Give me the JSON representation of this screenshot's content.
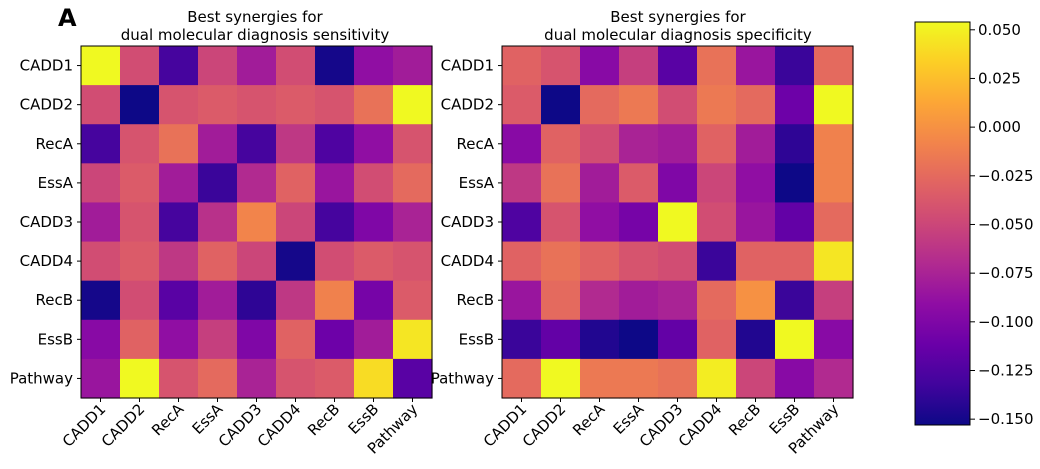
{
  "panel_label": "A",
  "colormap": {
    "name": "plasma",
    "vmin": -0.153,
    "vmax": 0.054,
    "ticks": [
      0.05,
      0.025,
      0.0,
      -0.025,
      -0.05,
      -0.075,
      -0.1,
      -0.125,
      -0.15
    ],
    "tick_labels": [
      "0.050",
      "0.025",
      "0.000",
      "−0.025",
      "−0.050",
      "−0.075",
      "−0.100",
      "−0.125",
      "−0.150"
    ]
  },
  "chart_data": [
    {
      "type": "heatmap",
      "title_lines": [
        "Best synergies for",
        "dual molecular diagnosis sensitivity"
      ],
      "rows": [
        "CADD1",
        "CADD2",
        "RecA",
        "EssA",
        "CADD3",
        "CADD4",
        "RecB",
        "EssB",
        "Pathway"
      ],
      "cols": [
        "CADD1",
        "CADD2",
        "RecA",
        "EssA",
        "CADD3",
        "CADD4",
        "RecB",
        "EssB",
        "Pathway"
      ],
      "values": [
        [
          0.054,
          -0.045,
          -0.13,
          -0.05,
          -0.08,
          -0.045,
          -0.15,
          -0.09,
          -0.08
        ],
        [
          -0.045,
          -0.153,
          -0.04,
          -0.035,
          -0.04,
          -0.035,
          -0.04,
          -0.02,
          0.054
        ],
        [
          -0.13,
          -0.04,
          -0.02,
          -0.08,
          -0.13,
          -0.06,
          -0.125,
          -0.09,
          -0.04
        ],
        [
          -0.05,
          -0.035,
          -0.08,
          -0.135,
          -0.07,
          -0.03,
          -0.085,
          -0.045,
          -0.025
        ],
        [
          -0.08,
          -0.04,
          -0.13,
          -0.065,
          -0.008,
          -0.05,
          -0.13,
          -0.1,
          -0.075
        ],
        [
          -0.045,
          -0.035,
          -0.06,
          -0.03,
          -0.05,
          -0.15,
          -0.045,
          -0.035,
          -0.04
        ],
        [
          -0.15,
          -0.045,
          -0.12,
          -0.08,
          -0.14,
          -0.06,
          -0.01,
          -0.105,
          -0.035
        ],
        [
          -0.095,
          -0.03,
          -0.09,
          -0.055,
          -0.1,
          -0.03,
          -0.11,
          -0.08,
          0.045
        ],
        [
          -0.085,
          0.054,
          -0.04,
          -0.025,
          -0.075,
          -0.04,
          -0.035,
          0.04,
          -0.12
        ]
      ]
    },
    {
      "type": "heatmap",
      "title_lines": [
        "Best synergies for",
        "dual molecular diagnosis specificity"
      ],
      "rows": [
        "CADD1",
        "CADD2",
        "RecA",
        "EssA",
        "CADD3",
        "CADD4",
        "RecB",
        "EssB",
        "Pathway"
      ],
      "cols": [
        "CADD1",
        "CADD2",
        "RecA",
        "EssA",
        "CADD3",
        "CADD4",
        "RecB",
        "EssB",
        "Pathway"
      ],
      "values": [
        [
          -0.03,
          -0.04,
          -0.095,
          -0.055,
          -0.12,
          -0.02,
          -0.085,
          -0.135,
          -0.025
        ],
        [
          -0.035,
          -0.153,
          -0.025,
          -0.015,
          -0.045,
          -0.015,
          -0.025,
          -0.11,
          0.054
        ],
        [
          -0.095,
          -0.03,
          -0.045,
          -0.075,
          -0.08,
          -0.03,
          -0.08,
          -0.14,
          -0.01
        ],
        [
          -0.06,
          -0.02,
          -0.08,
          -0.035,
          -0.1,
          -0.05,
          -0.09,
          -0.153,
          -0.01
        ],
        [
          -0.125,
          -0.04,
          -0.09,
          -0.105,
          0.054,
          -0.045,
          -0.085,
          -0.115,
          -0.025
        ],
        [
          -0.03,
          -0.02,
          -0.03,
          -0.04,
          -0.045,
          -0.135,
          -0.03,
          -0.03,
          0.045
        ],
        [
          -0.085,
          -0.025,
          -0.07,
          -0.08,
          -0.075,
          -0.025,
          0.0,
          -0.135,
          -0.055
        ],
        [
          -0.135,
          -0.115,
          -0.145,
          -0.153,
          -0.115,
          -0.03,
          -0.145,
          0.054,
          -0.095
        ],
        [
          -0.025,
          0.054,
          -0.015,
          -0.015,
          -0.02,
          0.048,
          -0.05,
          -0.095,
          -0.07
        ]
      ]
    }
  ]
}
